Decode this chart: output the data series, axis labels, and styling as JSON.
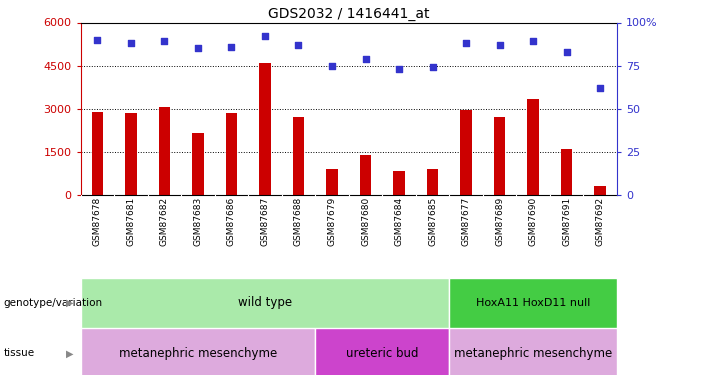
{
  "title": "GDS2032 / 1416441_at",
  "samples": [
    "GSM87678",
    "GSM87681",
    "GSM87682",
    "GSM87683",
    "GSM87686",
    "GSM87687",
    "GSM87688",
    "GSM87679",
    "GSM87680",
    "GSM87684",
    "GSM87685",
    "GSM87677",
    "GSM87689",
    "GSM87690",
    "GSM87691",
    "GSM87692"
  ],
  "counts": [
    2900,
    2850,
    3050,
    2150,
    2850,
    4600,
    2700,
    900,
    1400,
    850,
    900,
    2950,
    2700,
    3350,
    1600,
    300
  ],
  "percentile_ranks": [
    90,
    88,
    89,
    85,
    86,
    92,
    87,
    75,
    79,
    73,
    74,
    88,
    87,
    89,
    83,
    62
  ],
  "bar_color": "#cc0000",
  "dot_color": "#3333cc",
  "ylim_left": [
    0,
    6000
  ],
  "ylim_right": [
    0,
    100
  ],
  "yticks_left": [
    0,
    1500,
    3000,
    4500,
    6000
  ],
  "yticks_right": [
    0,
    25,
    50,
    75,
    100
  ],
  "genotype_wild_count": 11,
  "genotype_hoxa11_count": 5,
  "tissue_meta1_count": 7,
  "tissue_ureteric_count": 4,
  "tissue_meta2_count": 5,
  "wild_type_label": "wild type",
  "hoxa11_label": "HoxA11 HoxD11 null",
  "meta_mm_label": "metanephric mesenchyme",
  "ureteric_label": "ureteric bud",
  "wild_type_color": "#aaeaaa",
  "hoxa11_color": "#44cc44",
  "meta_mm_color": "#ddaadd",
  "ureteric_color": "#cc44cc",
  "legend_count_color": "#cc0000",
  "legend_pct_color": "#3333cc",
  "xticklabel_bg": "#cccccc"
}
